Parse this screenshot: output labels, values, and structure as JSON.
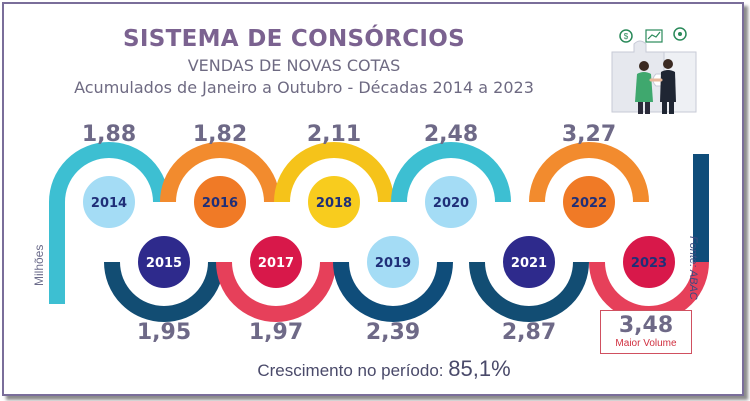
{
  "header": {
    "title": "SISTEMA DE CONSÓRCIOS",
    "subtitle": "VENDAS DE NOVAS COTAS",
    "period": "Acumulados de Janeiro a Outubro - Décadas 2014 a 2023"
  },
  "y_unit": "Milhões",
  "source": "Fonte: ABAC",
  "growth": {
    "label": "Crescimento no período:",
    "value": "85,1%"
  },
  "highlight": {
    "value": "3,48",
    "label": "Maior Volume",
    "color": "#d03040"
  },
  "chart_data": {
    "type": "line",
    "x": [
      "2014",
      "2015",
      "2016",
      "2017",
      "2018",
      "2019",
      "2020",
      "2021",
      "2022",
      "2023"
    ],
    "values": [
      1.88,
      1.95,
      1.82,
      1.97,
      2.11,
      2.39,
      2.48,
      2.87,
      3.27,
      3.48
    ],
    "value_labels": [
      "1,88",
      "1,95",
      "1,82",
      "1,97",
      "2,11",
      "2,39",
      "2,48",
      "2,87",
      "3,27",
      "3,48"
    ],
    "unit": "Milhões",
    "colors": [
      "#3dbfd2",
      "#124d73",
      "#f28b2e",
      "#e6405a",
      "#f5c31a",
      "#0f4d7a",
      "#3dbfd2",
      "#124d73",
      "#f28b2e",
      "#e6405a"
    ],
    "circle_colors": [
      "#a4dcf5",
      "#2e2a8c",
      "#f07a26",
      "#d8184a",
      "#f8cc1e",
      "#a4dcf5",
      "#a4dcf5",
      "#2e2a8c",
      "#f07a26",
      "#d8184a"
    ],
    "label_colors": [
      "#1f2f78",
      "#ffffff",
      "#1f2f78",
      "#ffffff",
      "#1f2f78",
      "#1f2f78",
      "#1f2f78",
      "#ffffff",
      "#1f2f78",
      "#1f2f78"
    ]
  }
}
